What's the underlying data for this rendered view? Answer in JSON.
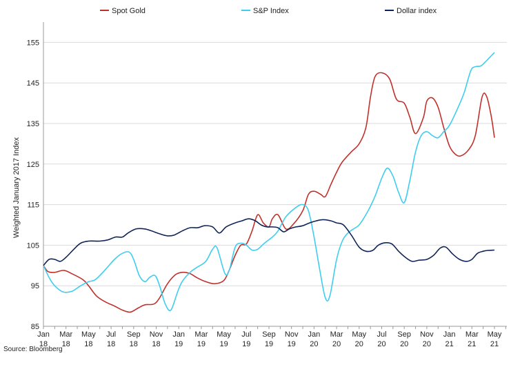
{
  "chart_data": {
    "type": "line",
    "title": "",
    "xlabel": "",
    "ylabel": "Weighted January 2017 Index",
    "ylim": [
      85,
      160
    ],
    "yticks": [
      85,
      95,
      105,
      115,
      125,
      135,
      145,
      155
    ],
    "grid": true,
    "legend": "top",
    "x_month_index": [
      0,
      41
    ],
    "xticks": [
      {
        "i": 0,
        "line1": "Jan",
        "line2": "18"
      },
      {
        "i": 2,
        "line1": "Mar",
        "line2": "18"
      },
      {
        "i": 4,
        "line1": "May",
        "line2": "18"
      },
      {
        "i": 6,
        "line1": "Jul",
        "line2": "18"
      },
      {
        "i": 8,
        "line1": "Sep",
        "line2": "18"
      },
      {
        "i": 10,
        "line1": "Nov",
        "line2": "18"
      },
      {
        "i": 12,
        "line1": "Jan",
        "line2": "19"
      },
      {
        "i": 14,
        "line1": "Mar",
        "line2": "19"
      },
      {
        "i": 16,
        "line1": "May",
        "line2": "19"
      },
      {
        "i": 18,
        "line1": "Jul",
        "line2": "19"
      },
      {
        "i": 20,
        "line1": "Sep",
        "line2": "19"
      },
      {
        "i": 22,
        "line1": "Nov",
        "line2": "19"
      },
      {
        "i": 24,
        "line1": "Jan",
        "line2": "20"
      },
      {
        "i": 26,
        "line1": "Mar",
        "line2": "20"
      },
      {
        "i": 28,
        "line1": "May",
        "line2": "20"
      },
      {
        "i": 30,
        "line1": "Jul",
        "line2": "20"
      },
      {
        "i": 32,
        "line1": "Sep",
        "line2": "20"
      },
      {
        "i": 34,
        "line1": "Nov",
        "line2": "20"
      },
      {
        "i": 36,
        "line1": "Jan",
        "line2": "21"
      },
      {
        "i": 38,
        "line1": "Mar",
        "line2": "21"
      },
      {
        "i": 40,
        "line1": "May",
        "line2": "21"
      }
    ],
    "series": [
      {
        "name": "Spot Gold",
        "color": "#c0302b",
        "points": [
          [
            0,
            100
          ],
          [
            0.4,
            98.5
          ],
          [
            1,
            98.3
          ],
          [
            1.8,
            98.8
          ],
          [
            2.5,
            98
          ],
          [
            3.5,
            96.5
          ],
          [
            4,
            95
          ],
          [
            4.7,
            92.5
          ],
          [
            5.5,
            91
          ],
          [
            6.3,
            90
          ],
          [
            7,
            89
          ],
          [
            7.7,
            88.5
          ],
          [
            8.4,
            89.5
          ],
          [
            9,
            90.3
          ],
          [
            9.8,
            90.5
          ],
          [
            10.3,
            92
          ],
          [
            11,
            95.5
          ],
          [
            11.7,
            97.7
          ],
          [
            12.3,
            98.3
          ],
          [
            13,
            98
          ],
          [
            13.6,
            97
          ],
          [
            14.4,
            96
          ],
          [
            15.2,
            95.5
          ],
          [
            16,
            96.3
          ],
          [
            16.5,
            99
          ],
          [
            17,
            102.5
          ],
          [
            17.5,
            105
          ],
          [
            18,
            105.3
          ],
          [
            18.5,
            108.5
          ],
          [
            19,
            112.5
          ],
          [
            19.5,
            110.5
          ],
          [
            20,
            109.5
          ],
          [
            20.3,
            111.5
          ],
          [
            20.8,
            112.5
          ],
          [
            21.5,
            109
          ],
          [
            22.2,
            110.3
          ],
          [
            23,
            113.5
          ],
          [
            23.5,
            117.5
          ],
          [
            24,
            118.3
          ],
          [
            24.6,
            117.5
          ],
          [
            25,
            117
          ],
          [
            25.5,
            120
          ],
          [
            26,
            123
          ],
          [
            26.5,
            125.5
          ],
          [
            27.3,
            128
          ],
          [
            28,
            130
          ],
          [
            28.6,
            134
          ],
          [
            29,
            141.5
          ],
          [
            29.4,
            146.5
          ],
          [
            30,
            147.5
          ],
          [
            30.7,
            146
          ],
          [
            31.3,
            141
          ],
          [
            32,
            140
          ],
          [
            32.5,
            136.5
          ],
          [
            33,
            132.5
          ],
          [
            33.7,
            136.5
          ],
          [
            34,
            140.5
          ],
          [
            34.5,
            141.3
          ],
          [
            35,
            139
          ],
          [
            35.5,
            134
          ],
          [
            36,
            129.5
          ],
          [
            36.5,
            127.5
          ],
          [
            37,
            127
          ],
          [
            37.7,
            128.5
          ],
          [
            38.3,
            132
          ],
          [
            38.9,
            141.5
          ],
          [
            39.3,
            141.7
          ],
          [
            39.7,
            137
          ],
          [
            40,
            131.5
          ]
        ]
      },
      {
        "name": "S&P Index",
        "color": "#3dcdf0",
        "points": [
          [
            0,
            100
          ],
          [
            0.5,
            97
          ],
          [
            1,
            95
          ],
          [
            1.7,
            93.5
          ],
          [
            2.5,
            93.6
          ],
          [
            3.3,
            95
          ],
          [
            4,
            96
          ],
          [
            4.6,
            96.5
          ],
          [
            5.5,
            99
          ],
          [
            6.3,
            101.5
          ],
          [
            7,
            103
          ],
          [
            7.6,
            103.3
          ],
          [
            8,
            101.5
          ],
          [
            8.5,
            97.5
          ],
          [
            9,
            96
          ],
          [
            9.4,
            97
          ],
          [
            9.9,
            97.5
          ],
          [
            10.3,
            95
          ],
          [
            10.8,
            90.5
          ],
          [
            11.3,
            89
          ],
          [
            11.9,
            93.5
          ],
          [
            12.3,
            96
          ],
          [
            13,
            98.3
          ],
          [
            13.6,
            99.5
          ],
          [
            14.4,
            101
          ],
          [
            15,
            104
          ],
          [
            15.4,
            104.3
          ],
          [
            16.1,
            98
          ],
          [
            16.5,
            99
          ],
          [
            17,
            104.5
          ],
          [
            17.5,
            105.5
          ],
          [
            18,
            105
          ],
          [
            18.5,
            103.8
          ],
          [
            19,
            104
          ],
          [
            19.6,
            105.5
          ],
          [
            20.3,
            107
          ],
          [
            20.8,
            108.5
          ],
          [
            21.5,
            112
          ],
          [
            22.4,
            114.3
          ],
          [
            23,
            115
          ],
          [
            23.5,
            113.5
          ],
          [
            24,
            107
          ],
          [
            24.5,
            99
          ],
          [
            25,
            92
          ],
          [
            25.4,
            92.5
          ],
          [
            26,
            101.5
          ],
          [
            26.5,
            106
          ],
          [
            27,
            108
          ],
          [
            27.5,
            109
          ],
          [
            28,
            110
          ],
          [
            28.7,
            113
          ],
          [
            29.4,
            117
          ],
          [
            30,
            121.5
          ],
          [
            30.5,
            124
          ],
          [
            31,
            122
          ],
          [
            31.5,
            118
          ],
          [
            32,
            115.5
          ],
          [
            32.5,
            121
          ],
          [
            33,
            128
          ],
          [
            33.5,
            132
          ],
          [
            34,
            133
          ],
          [
            34.5,
            132
          ],
          [
            35,
            131.5
          ],
          [
            35.5,
            133
          ],
          [
            36,
            134.5
          ],
          [
            36.7,
            138.5
          ],
          [
            37.3,
            142.5
          ],
          [
            37.9,
            148
          ],
          [
            38.3,
            149
          ],
          [
            38.8,
            149.2
          ],
          [
            39.3,
            150.5
          ],
          [
            40,
            152.5
          ]
        ]
      },
      {
        "name": "Dollar index",
        "color": "#0f2456",
        "points": [
          [
            0,
            100
          ],
          [
            0.5,
            101.5
          ],
          [
            1,
            101.5
          ],
          [
            1.5,
            101
          ],
          [
            2,
            102
          ],
          [
            2.7,
            104
          ],
          [
            3.3,
            105.5
          ],
          [
            4,
            106
          ],
          [
            5,
            106
          ],
          [
            5.7,
            106.3
          ],
          [
            6.4,
            107
          ],
          [
            7,
            107
          ],
          [
            7.5,
            108
          ],
          [
            8.2,
            109
          ],
          [
            9,
            109
          ],
          [
            9.6,
            108.5
          ],
          [
            10.3,
            107.8
          ],
          [
            11,
            107.3
          ],
          [
            11.6,
            107.5
          ],
          [
            12.3,
            108.5
          ],
          [
            13,
            109.3
          ],
          [
            13.7,
            109.3
          ],
          [
            14.3,
            109.8
          ],
          [
            15,
            109.5
          ],
          [
            15.6,
            108
          ],
          [
            16.2,
            109.5
          ],
          [
            17,
            110.5
          ],
          [
            17.6,
            111
          ],
          [
            18.2,
            111.5
          ],
          [
            18.8,
            111
          ],
          [
            19.3,
            110
          ],
          [
            19.8,
            109.5
          ],
          [
            20.3,
            109.5
          ],
          [
            20.8,
            109.3
          ],
          [
            21.3,
            108.3
          ],
          [
            21.8,
            109
          ],
          [
            22.4,
            109.5
          ],
          [
            23,
            109.8
          ],
          [
            23.6,
            110.5
          ],
          [
            24.2,
            111
          ],
          [
            24.8,
            111.3
          ],
          [
            25.5,
            111
          ],
          [
            26,
            110.5
          ],
          [
            26.6,
            110
          ],
          [
            27.3,
            107.5
          ],
          [
            28,
            104.5
          ],
          [
            28.6,
            103.5
          ],
          [
            29.2,
            103.7
          ],
          [
            29.7,
            105
          ],
          [
            30.3,
            105.6
          ],
          [
            30.9,
            105.3
          ],
          [
            31.5,
            103.5
          ],
          [
            32.1,
            102
          ],
          [
            32.7,
            101
          ],
          [
            33.3,
            101.3
          ],
          [
            34,
            101.5
          ],
          [
            34.6,
            102.5
          ],
          [
            35.2,
            104.3
          ],
          [
            35.7,
            104.5
          ],
          [
            36.3,
            102.8
          ],
          [
            36.9,
            101.5
          ],
          [
            37.5,
            101
          ],
          [
            38,
            101.5
          ],
          [
            38.5,
            103
          ],
          [
            39,
            103.5
          ],
          [
            39.4,
            103.7
          ],
          [
            40,
            103.8
          ]
        ]
      }
    ],
    "source": "Source: Bloomberg"
  }
}
